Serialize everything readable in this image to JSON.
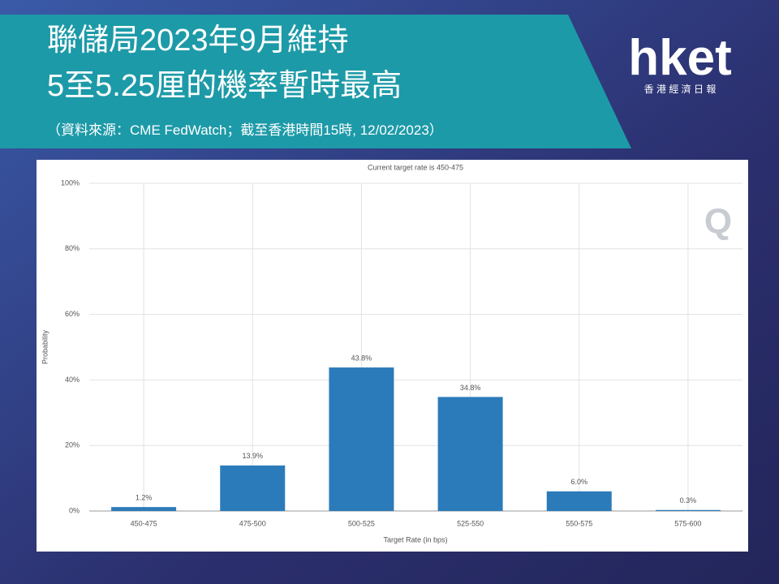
{
  "header": {
    "title_lines": [
      "聯儲局2023年9月維持",
      "5至5.25厘的機率暫時最高"
    ],
    "subtitle": "（資料來源：CME FedWatch；截至香港時間15時, 12/02/2023）",
    "logo": "hket",
    "logo_sub": "香 港 經 濟 日 報"
  },
  "chart_data": {
    "type": "bar",
    "title": "Current target rate is 450-475",
    "watermark": "Q",
    "x_label": "Target Rate (in bps)",
    "y_label": "Probability",
    "categories": [
      "450-475",
      "475-500",
      "500-525",
      "525-550",
      "550-575",
      "575-600"
    ],
    "values": [
      1.2,
      13.9,
      43.8,
      34.8,
      6.0,
      0.3
    ],
    "value_labels": [
      "1.2%",
      "13.9%",
      "43.8%",
      "34.8%",
      "6.0%",
      "0.3%"
    ],
    "color": "#2b7bba",
    "ylim": [
      0,
      100
    ],
    "yticks": [
      {
        "value": 0,
        "label": "0%"
      },
      {
        "value": 20,
        "label": "20%"
      },
      {
        "value": 40,
        "label": "40%"
      },
      {
        "value": 60,
        "label": "60%"
      },
      {
        "value": 80,
        "label": "80%"
      },
      {
        "value": 100,
        "label": "100%"
      }
    ],
    "grid": true
  }
}
